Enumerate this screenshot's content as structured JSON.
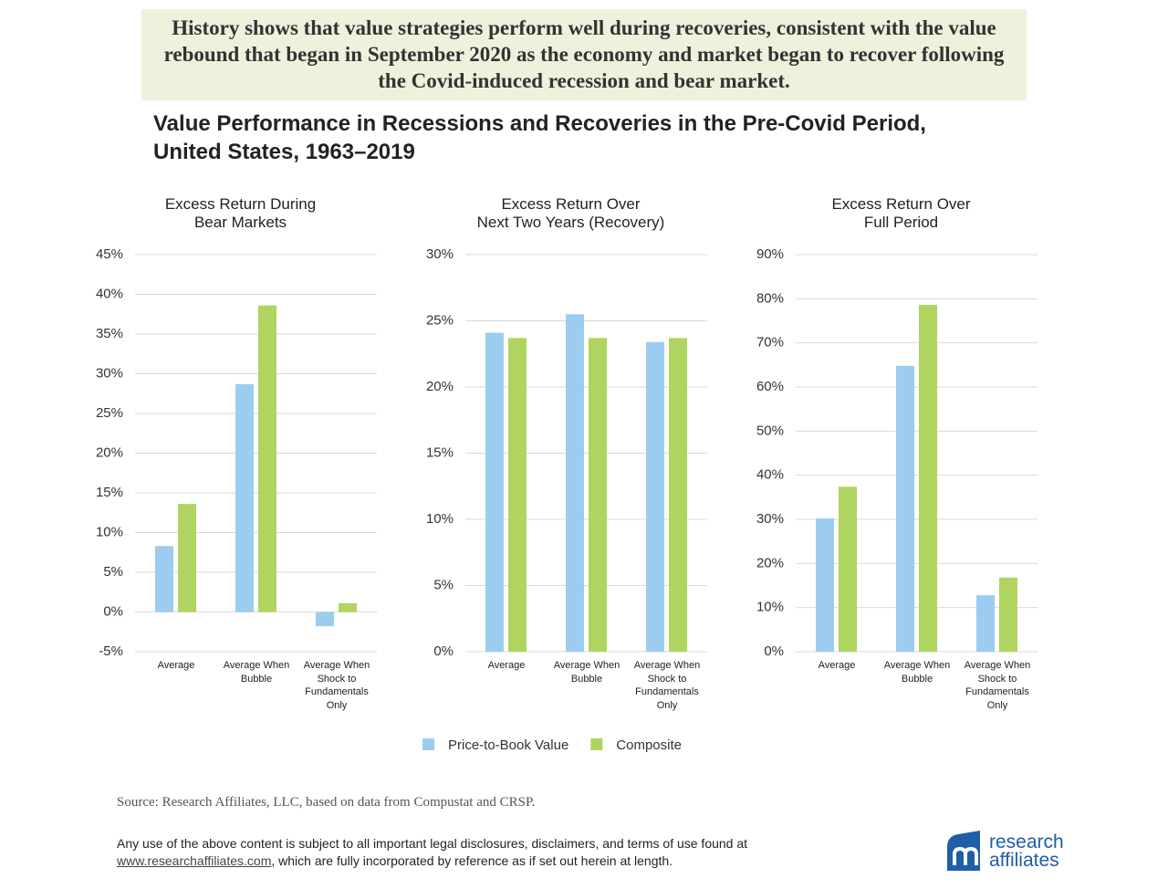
{
  "header": {
    "banner": "History shows that value strategies perform well during recoveries, consistent with the value rebound that began in September 2020 as the economy and market began to recover following the Covid-induced recession and bear market.",
    "title": "Value Performance in Recessions and Recoveries in the Pre-Covid Period, United States, 1963–2019"
  },
  "chart_data": [
    {
      "type": "bar",
      "title_lines": [
        "Excess Return During",
        "Bear Markets"
      ],
      "categories": [
        "Average",
        "Average When Bubble",
        "Average When Shock to Fundamentals Only"
      ],
      "series": [
        {
          "name": "Price-to-Book Value",
          "color": "#9ccdf0",
          "values": [
            8.3,
            28.7,
            -1.8
          ]
        },
        {
          "name": "Composite",
          "color": "#afd45f",
          "values": [
            13.6,
            38.6,
            1.1
          ]
        }
      ],
      "ylim": [
        -5,
        45
      ],
      "yticks": [
        {
          "value": -5,
          "label": "-5%"
        },
        {
          "value": 0,
          "label": "0%"
        },
        {
          "value": 5,
          "label": "5%"
        },
        {
          "value": 10,
          "label": "10%"
        },
        {
          "value": 15,
          "label": "15%"
        },
        {
          "value": 20,
          "label": "20%"
        },
        {
          "value": 25,
          "label": "25%"
        },
        {
          "value": 30,
          "label": "30%"
        },
        {
          "value": 35,
          "label": "35%"
        },
        {
          "value": 40,
          "label": "40%"
        },
        {
          "value": 45,
          "label": "45%"
        }
      ],
      "grid": true,
      "legend": "bottom"
    },
    {
      "type": "bar",
      "title_lines": [
        "Excess Return Over",
        "Next Two Years (Recovery)"
      ],
      "categories": [
        "Average",
        "Average When Bubble",
        "Average When Shock to Fundamentals Only"
      ],
      "series": [
        {
          "color": "#9ccdf0",
          "values": [
            24.1,
            25.5,
            23.4
          ]
        },
        {
          "color": "#afd45f",
          "values": [
            23.7,
            23.7,
            23.7
          ]
        }
      ],
      "ylim": [
        0,
        30
      ],
      "yticks": [
        {
          "value": 0,
          "label": "0%"
        },
        {
          "value": 5,
          "label": "5%"
        },
        {
          "value": 10,
          "label": "10%"
        },
        {
          "value": 15,
          "label": "15%"
        },
        {
          "value": 20,
          "label": "20%"
        },
        {
          "value": 25,
          "label": "25%"
        },
        {
          "value": 30,
          "label": "30%"
        }
      ],
      "grid": true
    },
    {
      "type": "bar",
      "title_lines": [
        "Excess Return Over",
        "Full Period"
      ],
      "categories": [
        "Average",
        "Average When Bubble",
        "Average When Shock to Fundamentals Only"
      ],
      "series": [
        {
          "color": "#9ccdf0",
          "values": [
            30.2,
            64.8,
            12.8
          ]
        },
        {
          "color": "#afd45f",
          "values": [
            37.4,
            78.6,
            16.8
          ]
        }
      ],
      "ylim": [
        0,
        90
      ],
      "yticks": [
        {
          "value": 0,
          "label": "0%"
        },
        {
          "value": 10,
          "label": "10%"
        },
        {
          "value": 20,
          "label": "20%"
        },
        {
          "value": 30,
          "label": "30%"
        },
        {
          "value": 40,
          "label": "40%"
        },
        {
          "value": 50,
          "label": "50%"
        },
        {
          "value": 60,
          "label": "60%"
        },
        {
          "value": 70,
          "label": "70%"
        },
        {
          "value": 80,
          "label": "80%"
        },
        {
          "value": 90,
          "label": "90%"
        }
      ],
      "grid": true
    }
  ],
  "footer": {
    "source": "Source: Research Affiliates, LLC, based on data from Compustat and CRSP.",
    "disclaimer": "Any use of the above content is subject to all important legal disclosures, disclaimers, and terms of use found at",
    "link": "www.researchaffiliates.com",
    "disclaimer_end": ", which are fully incorporated by reference as if set out herein at length.",
    "logo_top": "research",
    "logo_bottom": "affiliates"
  }
}
